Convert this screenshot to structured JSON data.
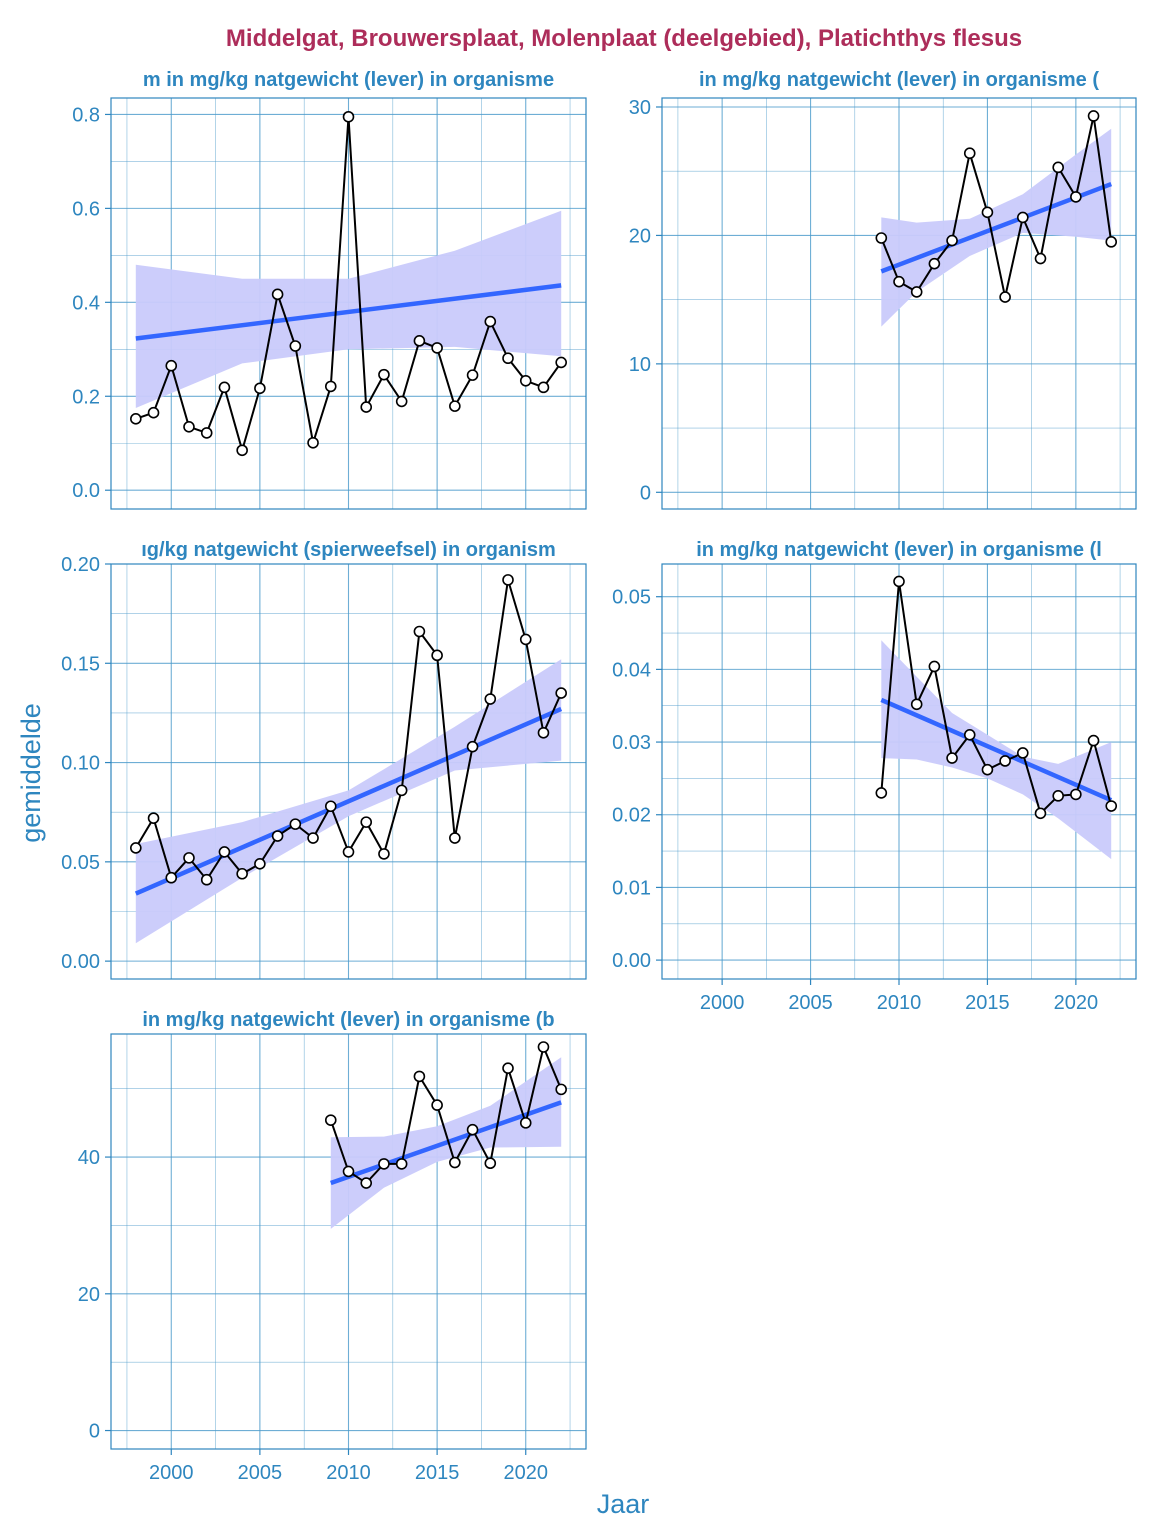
{
  "title": "Middelgat, Brouwersplaat, Molenplaat (deelgebied), Platichthys flesus",
  "xlabel": "Jaar",
  "ylabel": "gemiddelde",
  "colors": {
    "title": "#AD2D5A",
    "axis_text": "#2E86BF",
    "grid": "#4A9ACB",
    "trend": "#3366FF",
    "ribbon": "#C9CAFB",
    "line": "#000000",
    "point_fill": "#FFFFFF"
  },
  "chart_data": [
    {
      "type": "line",
      "title": "m in mg/kg natgewicht (lever) in organisme",
      "x": [
        1998,
        1999,
        2000,
        2001,
        2002,
        2003,
        2004,
        2005,
        2006,
        2007,
        2008,
        2009,
        2010,
        2011,
        2012,
        2013,
        2014,
        2015,
        2016,
        2017,
        2018,
        2019,
        2020,
        2021,
        2022
      ],
      "values": [
        0.152,
        0.165,
        0.265,
        0.135,
        0.122,
        0.219,
        0.085,
        0.217,
        0.417,
        0.307,
        0.101,
        0.221,
        0.795,
        0.177,
        0.246,
        0.189,
        0.318,
        0.303,
        0.179,
        0.245,
        0.359,
        0.281,
        0.233,
        0.219,
        0.272
      ],
      "trend": {
        "x": [
          1998,
          2022
        ],
        "y": [
          0.323,
          0.436
        ]
      },
      "ci": {
        "x": [
          1998,
          2004,
          2010,
          2016,
          2022
        ],
        "lower": [
          0.175,
          0.27,
          0.3,
          0.305,
          0.285
        ],
        "upper": [
          0.48,
          0.45,
          0.45,
          0.51,
          0.595
        ]
      },
      "xlim": [
        1996.6,
        2023.4
      ],
      "ylim": [
        -0.04,
        0.835
      ],
      "yticks": [
        0.0,
        0.2,
        0.4,
        0.6,
        0.8
      ],
      "yticklabels": [
        "0.0",
        "0.2",
        "0.4",
        "0.6",
        "0.8"
      ],
      "grid": true,
      "show_xaxis": false
    },
    {
      "type": "line",
      "title": "in mg/kg natgewicht (lever) in organisme (",
      "x": [
        2009,
        2010,
        2011,
        2012,
        2013,
        2014,
        2015,
        2016,
        2017,
        2018,
        2019,
        2020,
        2021,
        2022
      ],
      "values": [
        19.8,
        16.4,
        15.6,
        17.8,
        19.6,
        26.4,
        21.8,
        15.2,
        21.4,
        18.2,
        25.3,
        23.0,
        29.3,
        19.5
      ],
      "trend": {
        "x": [
          2009,
          2022
        ],
        "y": [
          17.2,
          24.0
        ]
      },
      "ci": {
        "x": [
          2009,
          2011,
          2014,
          2017,
          2020,
          2022
        ],
        "lower": [
          12.9,
          15.6,
          18.4,
          20.2,
          19.9,
          19.6
        ],
        "upper": [
          21.4,
          21.0,
          21.3,
          23.2,
          26.3,
          28.3
        ]
      },
      "xlim": [
        1996.6,
        2023.4
      ],
      "ylim": [
        -1.3,
        30.7
      ],
      "yticks": [
        0,
        10,
        20,
        30
      ],
      "yticklabels": [
        "0",
        "10",
        "20",
        "30"
      ],
      "grid": true,
      "show_xaxis": false
    },
    {
      "type": "line",
      "title": "ıg/kg natgewicht (spierweefsel) in organism",
      "x": [
        1998,
        1999,
        2000,
        2001,
        2002,
        2003,
        2004,
        2005,
        2006,
        2007,
        2008,
        2009,
        2010,
        2011,
        2012,
        2013,
        2014,
        2015,
        2016,
        2017,
        2018,
        2019,
        2020,
        2021,
        2022
      ],
      "values": [
        0.057,
        0.072,
        0.042,
        0.052,
        0.041,
        0.055,
        0.044,
        0.049,
        0.063,
        0.069,
        0.062,
        0.078,
        0.055,
        0.07,
        0.054,
        0.086,
        0.166,
        0.154,
        0.062,
        0.108,
        0.132,
        0.192,
        0.162,
        0.115,
        0.135
      ],
      "trend": {
        "x": [
          1998,
          2022
        ],
        "y": [
          0.034,
          0.127
        ]
      },
      "ci": {
        "x": [
          1998,
          2004,
          2010,
          2016,
          2022
        ],
        "lower": [
          0.009,
          0.042,
          0.073,
          0.096,
          0.101
        ],
        "upper": [
          0.059,
          0.07,
          0.086,
          0.118,
          0.152
        ]
      },
      "xlim": [
        1996.6,
        2023.4
      ],
      "ylim": [
        -0.009,
        0.2
      ],
      "yticks": [
        0.0,
        0.05,
        0.1,
        0.15,
        0.2
      ],
      "yticklabels": [
        "0.00",
        "0.05",
        "0.10",
        "0.15",
        "0.20"
      ],
      "grid": true,
      "show_xaxis": false
    },
    {
      "type": "line",
      "title": "in mg/kg natgewicht (lever) in organisme (l",
      "x": [
        2009,
        2010,
        2011,
        2012,
        2013,
        2014,
        2015,
        2016,
        2017,
        2018,
        2019,
        2020,
        2021,
        2022
      ],
      "values": [
        0.023,
        0.0521,
        0.0352,
        0.0404,
        0.0278,
        0.031,
        0.0262,
        0.0274,
        0.0285,
        0.0202,
        0.0226,
        0.0228,
        0.0302,
        0.0212
      ],
      "trend": {
        "x": [
          2009,
          2022
        ],
        "y": [
          0.0358,
          0.022
        ]
      },
      "ci": {
        "x": [
          2009,
          2011,
          2013,
          2015,
          2017,
          2019,
          2022
        ],
        "lower": [
          0.0278,
          0.0276,
          0.0265,
          0.025,
          0.0228,
          0.0195,
          0.0139
        ],
        "upper": [
          0.044,
          0.039,
          0.034,
          0.031,
          0.028,
          0.027,
          0.03
        ]
      },
      "xlim": [
        1996.6,
        2023.4
      ],
      "ylim": [
        -0.0026,
        0.0545
      ],
      "yticks": [
        0.0,
        0.01,
        0.02,
        0.03,
        0.04,
        0.05
      ],
      "yticklabels": [
        "0.00",
        "0.01",
        "0.02",
        "0.03",
        "0.04",
        "0.05"
      ],
      "grid": true,
      "show_xaxis": true,
      "xticks": [
        2000,
        2005,
        2010,
        2015,
        2020
      ],
      "xticklabels": [
        "2000",
        "2005",
        "2010",
        "2015",
        "2020"
      ]
    },
    {
      "type": "line",
      "title": "in mg/kg natgewicht (lever) in organisme (b",
      "x": [
        2009,
        2010,
        2011,
        2012,
        2013,
        2014,
        2015,
        2016,
        2017,
        2018,
        2019,
        2020,
        2021,
        2022
      ],
      "values": [
        45.4,
        37.9,
        36.2,
        39.0,
        39.0,
        51.8,
        47.6,
        39.2,
        44.0,
        39.1,
        53.0,
        45.0,
        56.1,
        49.9
      ],
      "trend": {
        "x": [
          2009,
          2022
        ],
        "y": [
          36.2,
          48.0
        ]
      },
      "ci": {
        "x": [
          2009,
          2012,
          2015,
          2018,
          2022
        ],
        "lower": [
          29.5,
          35.5,
          39.3,
          41.4,
          41.5
        ],
        "upper": [
          42.9,
          43.0,
          44.5,
          47.5,
          54.6
        ]
      },
      "xlim": [
        1996.6,
        2023.4
      ],
      "ylim": [
        -2.7,
        58.0
      ],
      "yticks": [
        0,
        20,
        40
      ],
      "yticklabels": [
        "0",
        "20",
        "40"
      ],
      "grid": true,
      "show_xaxis": true,
      "xticks": [
        2000,
        2005,
        2010,
        2015,
        2020
      ],
      "xticklabels": [
        "2000",
        "2005",
        "2010",
        "2015",
        "2020"
      ]
    }
  ]
}
